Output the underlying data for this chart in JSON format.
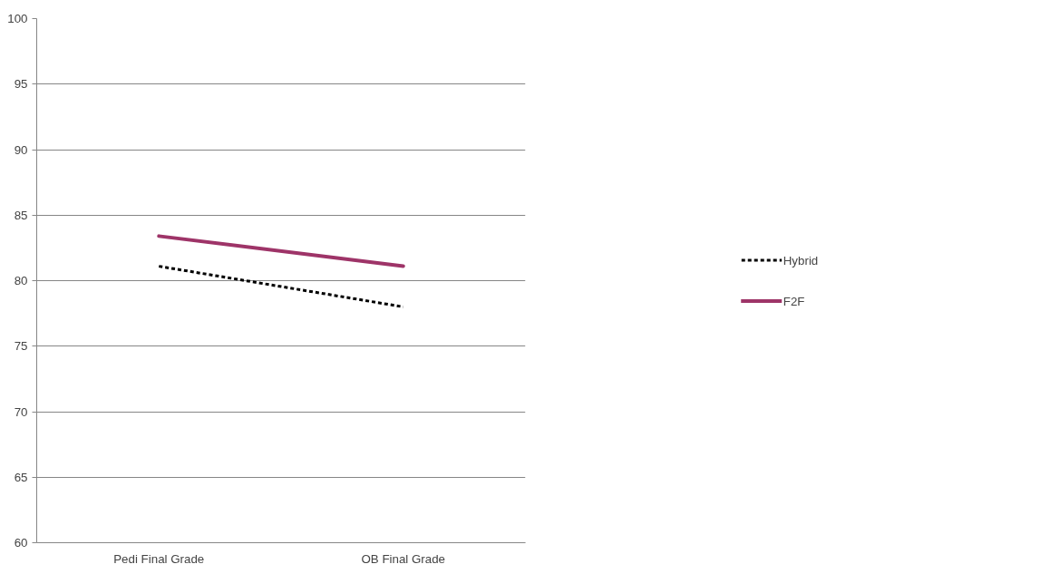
{
  "chart_data": {
    "type": "line",
    "categories": [
      "Pedi Final Grade",
      "OB Final Grade"
    ],
    "series": [
      {
        "name": "Hybrid",
        "color": "#000000",
        "values": [
          81.1,
          78.0
        ],
        "line_style": "dashed"
      },
      {
        "name": "F2F",
        "color": "#9e3468",
        "values": [
          83.4,
          81.1
        ],
        "line_style": "solid"
      }
    ],
    "ylim": [
      60,
      100
    ],
    "yticks": [
      60,
      65,
      70,
      75,
      80,
      85,
      90,
      95,
      100
    ],
    "grid": "y",
    "legend": "right",
    "marker": "none"
  }
}
